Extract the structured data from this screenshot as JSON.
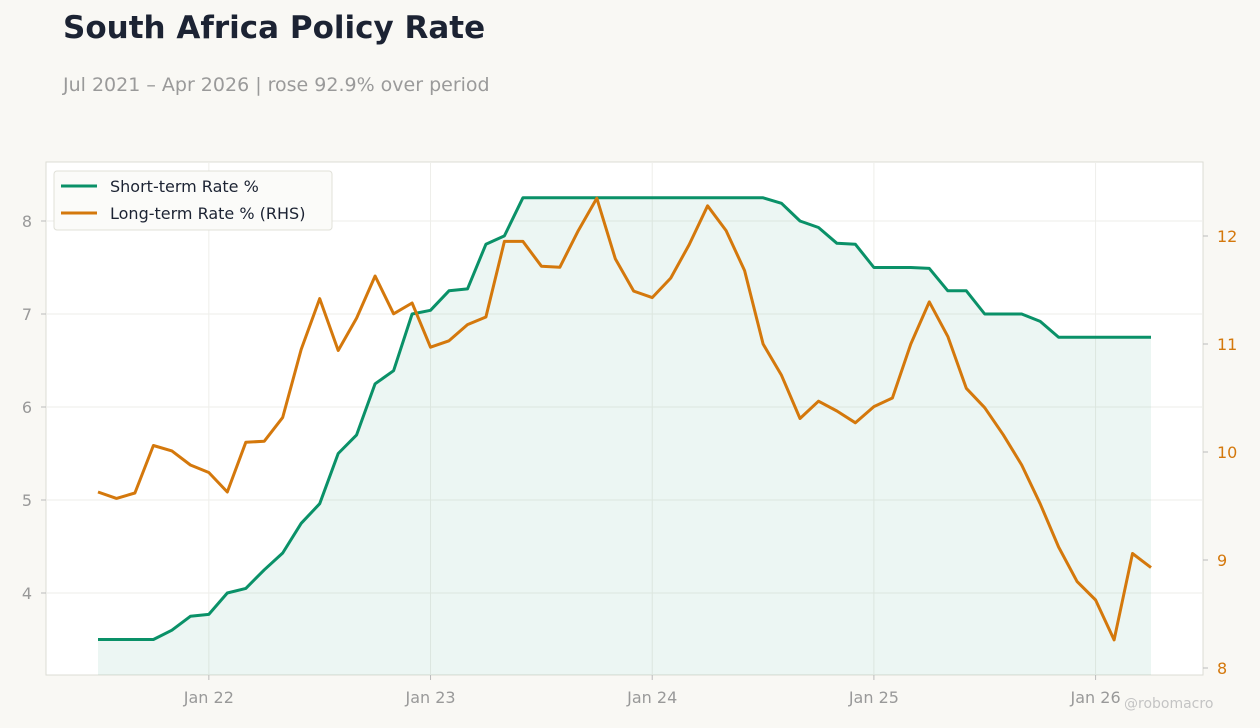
{
  "header": {
    "title": "South Africa Policy Rate",
    "subtitle": "Jul 2021 – Apr 2026 | rose 92.9% over period"
  },
  "watermark": "@robomacro",
  "colors": {
    "short": "#0a9168",
    "long": "#d4780c",
    "axis_text": "#999999",
    "rhs_text": "#d4780c"
  },
  "chart_data": {
    "type": "line",
    "title": "South Africa Policy Rate",
    "subtitle": "Jul 2021 – Apr 2026 | rose 92.9% over period",
    "x_start": "2021-07",
    "x_end": "2026-04",
    "x_ticks": [
      "Jan 22",
      "Jan 23",
      "Jan 24",
      "Jan 25",
      "Jan 26"
    ],
    "y_left": {
      "ticks": [
        4,
        5,
        6,
        7,
        8
      ],
      "range": [
        3.15,
        8.6
      ]
    },
    "y_right": {
      "ticks": [
        8,
        9,
        10,
        11,
        12
      ],
      "range": [
        7.95,
        12.65
      ]
    },
    "legend_position": "top-left",
    "grid": true,
    "series": [
      {
        "name": "Short-term Rate %",
        "axis": "left",
        "fill": true,
        "values": [
          3.5,
          3.5,
          3.5,
          3.5,
          3.6,
          3.75,
          3.77,
          4.0,
          4.05,
          4.25,
          4.43,
          4.75,
          4.96,
          5.5,
          5.7,
          6.25,
          6.39,
          7.0,
          7.04,
          7.25,
          7.27,
          7.75,
          7.84,
          8.25,
          8.25,
          8.25,
          8.25,
          8.25,
          8.25,
          8.25,
          8.25,
          8.25,
          8.25,
          8.25,
          8.25,
          8.25,
          8.25,
          8.19,
          8.0,
          7.93,
          7.76,
          7.75,
          7.5,
          7.5,
          7.5,
          7.49,
          7.25,
          7.25,
          7.0,
          7.0,
          7.0,
          6.92,
          6.75,
          6.75,
          6.75,
          6.75,
          6.75,
          6.75
        ]
      },
      {
        "name": "Long-term Rate % (RHS)",
        "axis": "right",
        "fill": false,
        "values": [
          9.63,
          9.57,
          9.62,
          10.06,
          10.01,
          9.88,
          9.81,
          9.63,
          10.09,
          10.1,
          10.32,
          10.95,
          11.42,
          10.94,
          11.24,
          11.63,
          11.28,
          11.38,
          10.97,
          11.03,
          11.18,
          11.25,
          11.95,
          11.95,
          11.72,
          11.71,
          12.05,
          12.35,
          11.79,
          11.49,
          11.43,
          11.61,
          11.92,
          12.28,
          12.05,
          11.68,
          11.0,
          10.71,
          10.31,
          10.47,
          10.38,
          10.27,
          10.42,
          10.5,
          11.0,
          11.39,
          11.07,
          10.59,
          10.41,
          10.16,
          9.88,
          9.52,
          9.12,
          8.8,
          8.63,
          8.26,
          9.06,
          8.93
        ]
      }
    ]
  }
}
